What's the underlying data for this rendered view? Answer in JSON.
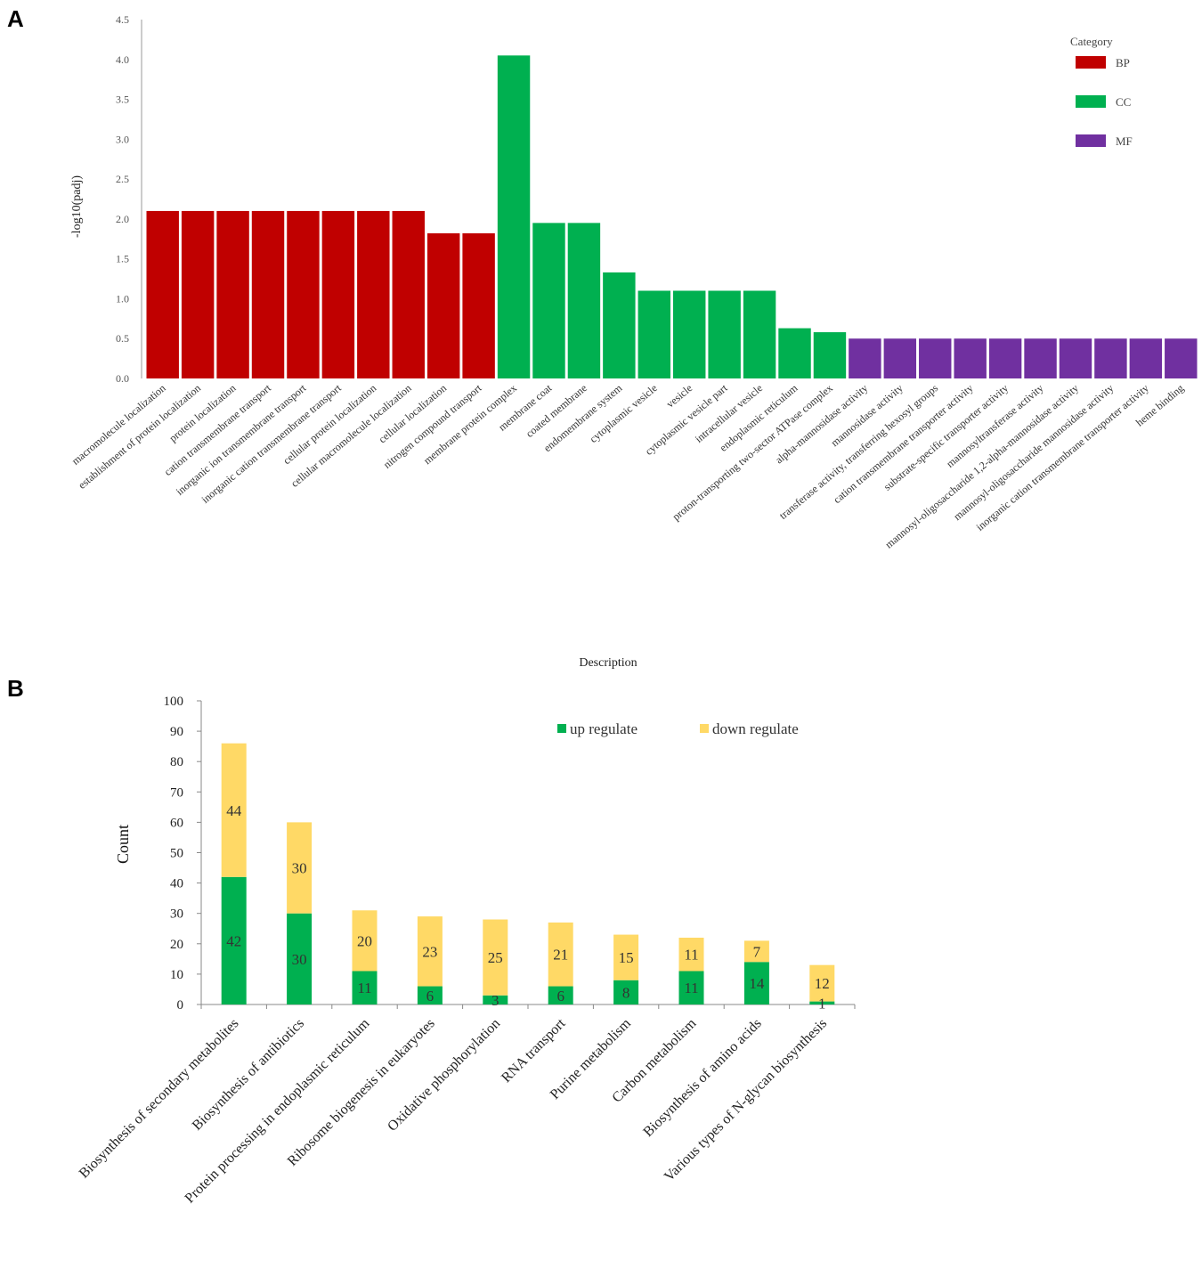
{
  "chart_data": [
    {
      "panel": "A",
      "type": "bar",
      "title": "",
      "xlabel": "Description",
      "ylabel": "-log10(padj)",
      "ylim": [
        0,
        4.5
      ],
      "yticks": [
        "0.0",
        "0.5",
        "1.0",
        "1.5",
        "2.0",
        "2.5",
        "3.0",
        "3.5",
        "4.0",
        "4.5"
      ],
      "legend": {
        "title": "Category",
        "position": "top-right",
        "entries": [
          {
            "name": "BP",
            "color": "#c00000"
          },
          {
            "name": "CC",
            "color": "#00b050"
          },
          {
            "name": "MF",
            "color": "#7030a0"
          }
        ]
      },
      "categories": [
        "macromolecule localization",
        "establishment of protein localization",
        "protein localization",
        "cation transmembrane transport",
        "inorganic ion transmembrane transport",
        "inorganic cation transmembrane transport",
        "cellular protein localization",
        "cellular macromolecule localization",
        "cellular localization",
        "nitrogen compound transport",
        "membrane protein complex",
        "membrane coat",
        "coated membrane",
        "endomembrane system",
        "cytoplasmic vesicle",
        "vesicle",
        "cytoplasmic vesicle part",
        "intracellular vesicle",
        "endoplasmic reticulum",
        "proton-transporting two-sector ATPase complex",
        "alpha-mannosidase activity",
        "mannosidase activity",
        "transferase activity, transferring hexosyl groups",
        "cation transmembrane transporter activity",
        "substrate-specific transporter activity",
        "mannosyltransferase activity",
        "mannosyl-oligosaccharide 1,2-alpha-mannosidase activity",
        "mannosyl-oligosaccharide mannosidase activity",
        "inorganic cation transmembrane transporter activity",
        "heme binding"
      ],
      "values": [
        2.1,
        2.1,
        2.1,
        2.1,
        2.1,
        2.1,
        2.1,
        2.1,
        1.82,
        1.82,
        4.05,
        1.95,
        1.95,
        1.33,
        1.1,
        1.1,
        1.1,
        1.1,
        0.63,
        0.58,
        0.5,
        0.5,
        0.5,
        0.5,
        0.5,
        0.5,
        0.5,
        0.5,
        0.5,
        0.5
      ],
      "category_groups": [
        "BP",
        "BP",
        "BP",
        "BP",
        "BP",
        "BP",
        "BP",
        "BP",
        "BP",
        "BP",
        "CC",
        "CC",
        "CC",
        "CC",
        "CC",
        "CC",
        "CC",
        "CC",
        "CC",
        "CC",
        "MF",
        "MF",
        "MF",
        "MF",
        "MF",
        "MF",
        "MF",
        "MF",
        "MF",
        "MF"
      ]
    },
    {
      "panel": "B",
      "type": "bar",
      "stacked": true,
      "title": "",
      "xlabel": "",
      "ylabel": "Count",
      "ylim": [
        0,
        100
      ],
      "yticks": [
        "0",
        "10",
        "20",
        "30",
        "40",
        "50",
        "60",
        "70",
        "80",
        "90",
        "100"
      ],
      "legend": {
        "position": "top-center"
      },
      "categories": [
        "Biosynthesis of secondary metabolites",
        "Biosynthesis of antibiotics",
        "Protein processing in endoplasmic reticulum",
        "Ribosome biogenesis in eukaryotes",
        "Oxidative phosphorylation",
        "RNA transport",
        "Purine metabolism",
        "Carbon metabolism",
        "Biosynthesis of amino acids",
        "Various types of N-glycan biosynthesis"
      ],
      "series": [
        {
          "name": "up regulate",
          "color": "#00b050",
          "values": [
            42,
            30,
            11,
            6,
            3,
            6,
            8,
            11,
            14,
            1
          ]
        },
        {
          "name": "down regulate",
          "color": "#ffd966",
          "values": [
            44,
            30,
            20,
            23,
            25,
            21,
            15,
            11,
            7,
            12
          ]
        }
      ]
    }
  ]
}
